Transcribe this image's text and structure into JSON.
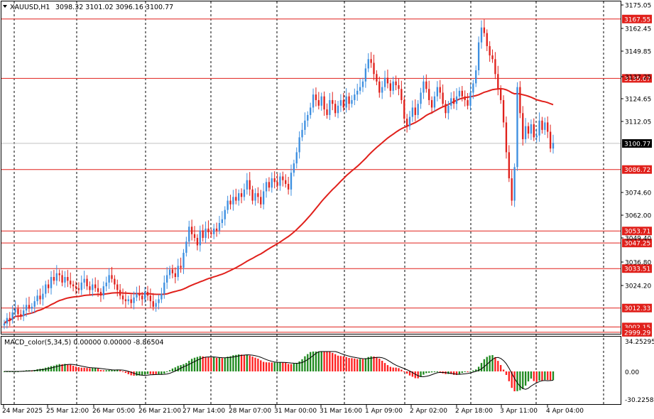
{
  "header": {
    "symbol": "XAUUSD,H1",
    "ohlc": "3098.32 3101.02 3096.16 3100.77"
  },
  "macd_header": {
    "label": "MACD_color(5,34,5) 0.00000 0.00000 -8.86504"
  },
  "price_axis": {
    "labels": [
      "3175.05",
      "3162.45",
      "3149.85",
      "3137.25",
      "3124.65",
      "3112.05",
      "3100.77",
      "3086.72",
      "3074.60",
      "3062.00",
      "3049.40",
      "3036.80",
      "3024.20",
      "3012.33",
      "3002.15",
      "2999.29"
    ]
  },
  "macd_axis": {
    "labels": [
      "34.25295",
      "0.00",
      "-30.22583"
    ]
  },
  "time_axis": {
    "labels": [
      "24 Mar 2025",
      "25 Mar 12:00",
      "26 Mar 05:00",
      "26 Mar 21:00",
      "27 Mar 14:00",
      "28 Mar 07:00",
      "31 Mar 00:00",
      "31 Mar 16:00",
      "1 Apr 09:00",
      "2 Apr 02:00",
      "2 Apr 18:00",
      "3 Apr 11:00",
      "4 Apr 04:00"
    ]
  },
  "current_price": "3100.77",
  "levels": [
    {
      "label": "3167.55"
    },
    {
      "label": "3135.67"
    },
    {
      "label": "3086.72"
    },
    {
      "label": "3053.71"
    },
    {
      "label": "3047.25"
    },
    {
      "label": "3033.51"
    },
    {
      "label": "3012.33"
    },
    {
      "label": "3002.15"
    },
    {
      "label": "2999.29"
    }
  ],
  "colors": {
    "bull": "#3d8fe0",
    "bear": "#e0201b",
    "level": "#e0201b",
    "ma": "#e0201b",
    "macd_up": "#1f8a1f",
    "macd_down": "#ff1f1f",
    "signal": "#000000",
    "grid": "#000000"
  },
  "chart_data": {
    "type": "candlestick",
    "ylim": [
      2998.5,
      3177.0
    ],
    "candle_closes": [
      3004,
      3007,
      3006,
      3010,
      3012,
      3009,
      3008,
      3011,
      3014,
      3012,
      3013,
      3016,
      3019,
      3017,
      3020,
      3025,
      3023,
      3029,
      3027,
      3031,
      3030,
      3026,
      3029,
      3027,
      3025,
      3024,
      3023,
      3022,
      3026,
      3028,
      3024,
      3022,
      3025,
      3023,
      3021,
      3019,
      3024,
      3026,
      3030,
      3028,
      3025,
      3022,
      3019,
      3017,
      3016,
      3017,
      3015,
      3018,
      3020,
      3019,
      3017,
      3021,
      3019,
      3016,
      3013,
      3015,
      3017,
      3020,
      3026,
      3030,
      3033,
      3031,
      3029,
      3035,
      3034,
      3042,
      3048,
      3056,
      3052,
      3050,
      3046,
      3054,
      3050,
      3055,
      3053,
      3052,
      3055,
      3054,
      3058,
      3060,
      3065,
      3070,
      3068,
      3072,
      3070,
      3074,
      3072,
      3076,
      3081,
      3076,
      3070,
      3074,
      3072,
      3068,
      3075,
      3080,
      3077,
      3082,
      3080,
      3078,
      3083,
      3081,
      3079,
      3076,
      3085,
      3090,
      3096,
      3104,
      3108,
      3113,
      3116,
      3120,
      3127,
      3124,
      3121,
      3126,
      3119,
      3116,
      3124,
      3122,
      3117,
      3121,
      3124,
      3120,
      3126,
      3122,
      3124,
      3127,
      3129,
      3131,
      3134,
      3141,
      3146,
      3144,
      3138,
      3134,
      3128,
      3131,
      3136,
      3133,
      3129,
      3134,
      3132,
      3130,
      3124,
      3114,
      3110,
      3115,
      3120,
      3116,
      3122,
      3128,
      3134,
      3130,
      3124,
      3120,
      3126,
      3131,
      3128,
      3122,
      3117,
      3121,
      3125,
      3122,
      3126,
      3129,
      3126,
      3124,
      3121,
      3128,
      3133,
      3140,
      3155,
      3163,
      3160,
      3153,
      3148,
      3146,
      3138,
      3130,
      3124,
      3112,
      3096,
      3082,
      3070,
      3088,
      3131,
      3117,
      3103,
      3110,
      3106,
      3111,
      3104,
      3105,
      3113,
      3108,
      3112,
      3107,
      3098,
      3101
    ],
    "ma_period_note": "",
    "levels": [
      3167.55,
      3135.67,
      3086.72,
      3053.71,
      3047.25,
      3033.51,
      3012.33,
      3002.15,
      2999.29
    ],
    "current": 3100.77
  }
}
